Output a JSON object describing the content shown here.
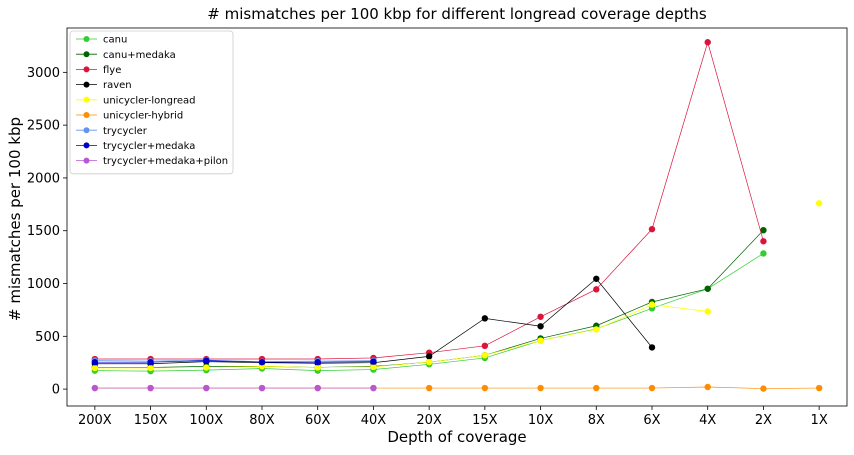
{
  "chart_data": {
    "type": "line",
    "title": "# mismatches per 100 kbp for different longread coverage depths",
    "xlabel": "Depth of coverage",
    "ylabel": "# mismatches per 100 kbp",
    "categories": [
      "200X",
      "150X",
      "100X",
      "80X",
      "60X",
      "40X",
      "20X",
      "15X",
      "10X",
      "8X",
      "6X",
      "4X",
      "2X",
      "1X"
    ],
    "ylim": [
      -160,
      3420
    ],
    "yticks": [
      0,
      500,
      1000,
      1500,
      2000,
      2500,
      3000
    ],
    "grid": false,
    "legend_position": "top-left",
    "series": [
      {
        "name": "canu",
        "color": "#32cd32",
        "values": [
          175,
          170,
          180,
          195,
          175,
          185,
          235,
          295,
          460,
          570,
          765,
          950,
          1285,
          null
        ]
      },
      {
        "name": "canu+medaka",
        "color": "#006400",
        "values": [
          205,
          205,
          215,
          215,
          205,
          215,
          255,
          320,
          480,
          600,
          825,
          950,
          1505,
          null
        ]
      },
      {
        "name": "flye",
        "color": "#dc143c",
        "values": [
          285,
          285,
          285,
          285,
          285,
          295,
          345,
          410,
          685,
          945,
          1515,
          3285,
          1400,
          null
        ]
      },
      {
        "name": "raven",
        "color": "#000000",
        "values": [
          240,
          240,
          260,
          250,
          245,
          250,
          310,
          670,
          595,
          1045,
          395,
          null,
          null,
          null
        ]
      },
      {
        "name": "unicycler-longread",
        "color": "#ffff00",
        "values": [
          200,
          200,
          205,
          215,
          205,
          210,
          255,
          320,
          460,
          565,
          800,
          735,
          null,
          1760
        ]
      },
      {
        "name": "unicycler-hybrid",
        "color": "#ff8c00",
        "values": [
          10,
          10,
          10,
          10,
          10,
          10,
          10,
          10,
          10,
          10,
          10,
          20,
          5,
          10
        ]
      },
      {
        "name": "trycycler",
        "color": "#6495ed",
        "values": [
          270,
          265,
          275,
          260,
          265,
          270,
          null,
          null,
          null,
          null,
          null,
          null,
          null,
          null
        ]
      },
      {
        "name": "trycycler+medaka",
        "color": "#0000cd",
        "values": [
          255,
          255,
          270,
          255,
          255,
          260,
          null,
          null,
          null,
          null,
          null,
          null,
          null,
          null
        ]
      },
      {
        "name": "trycycler+medaka+pilon",
        "color": "#ba55d3",
        "values": [
          10,
          10,
          10,
          10,
          10,
          10,
          null,
          null,
          null,
          null,
          null,
          null,
          null,
          null
        ]
      }
    ]
  }
}
